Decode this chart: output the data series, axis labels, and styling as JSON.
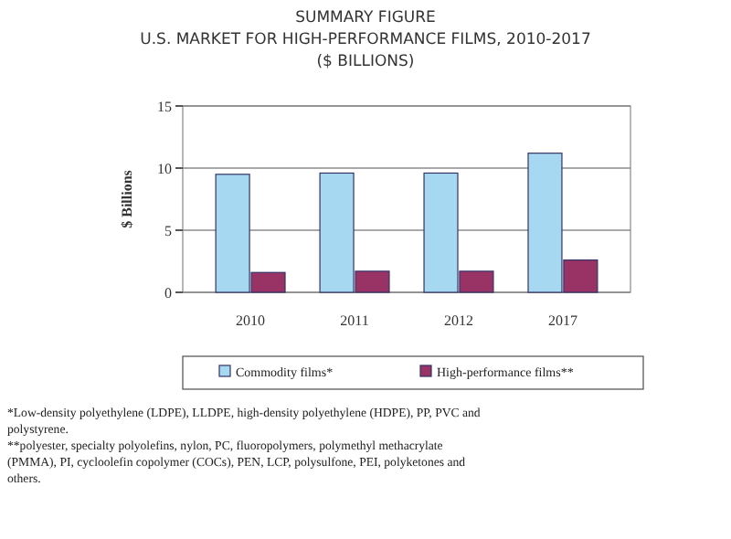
{
  "chart_data": {
    "type": "bar",
    "title": "SUMMARY FIGURE",
    "subtitle": "U.S. MARKET FOR HIGH-PERFORMANCE FILMS, 2010-2017\n($ BILLIONS)",
    "ylabel": "$ Billions",
    "categories": [
      "2010",
      "2011",
      "2012",
      "2017"
    ],
    "series": [
      {
        "name": "Commodity films*",
        "color": "#a6d8f2",
        "values": [
          9.5,
          9.6,
          9.6,
          11.2
        ]
      },
      {
        "name": "High-performance films**",
        "color": "#993366",
        "values": [
          1.6,
          1.7,
          1.7,
          2.6
        ]
      }
    ],
    "ylim": [
      0,
      15
    ],
    "yticks": [
      0,
      5,
      10,
      15
    ],
    "grid": "y",
    "legend": "bottom",
    "annotations": [
      "*Low-density polyethylene (LDPE), LLDPE, high-density polyethylene (HDPE), PP, PVC and polystyrene.",
      "**polyester, specialty polyolefins, nylon, PC, fluoropolymers, polymethyl methacrylate (PMMA), PI, cycloolefin copolymer (COCs), PEN, LCP, polysulfone, PEI, polyketones and others."
    ]
  }
}
